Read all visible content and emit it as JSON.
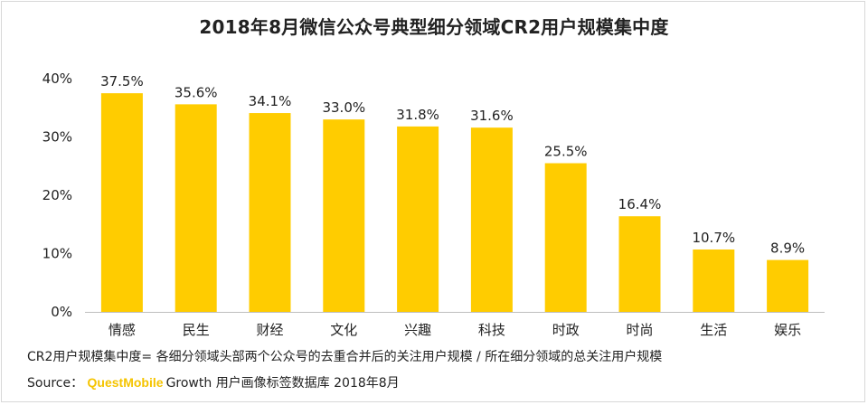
{
  "colors": {
    "bar": "#ffcc00",
    "axis": "#bfbfbf",
    "text": "#222222",
    "brand": "#f5c400"
  },
  "chart_data": {
    "type": "bar",
    "title": "2018年8月微信公众号典型细分领域CR2用户规模集中度",
    "categories": [
      "情感",
      "民生",
      "财经",
      "文化",
      "兴趣",
      "科技",
      "时政",
      "时尚",
      "生活",
      "娱乐"
    ],
    "values": [
      37.5,
      35.6,
      34.1,
      33.0,
      31.8,
      31.6,
      25.5,
      16.4,
      10.7,
      8.9
    ],
    "value_labels": [
      "37.5%",
      "35.6%",
      "34.1%",
      "33.0%",
      "31.8%",
      "31.6%",
      "25.5%",
      "16.4%",
      "10.7%",
      "8.9%"
    ],
    "y_ticks": [
      0,
      10,
      20,
      30,
      40
    ],
    "y_tick_labels": [
      "0%",
      "10%",
      "20%",
      "30%",
      "40%"
    ],
    "ylim": [
      0,
      40
    ],
    "xlabel": "",
    "ylabel": "",
    "grid": false,
    "legend": "none"
  },
  "footnote": "CR2用户规模集中度= 各细分领域头部两个公众号的去重合并后的关注用户规模 / 所在细分领域的总关注用户规模",
  "source": {
    "prefix": "Source： ",
    "brand": "QuestMobile",
    "text": "Growth 用户画像标签数据库 2018年8月"
  }
}
